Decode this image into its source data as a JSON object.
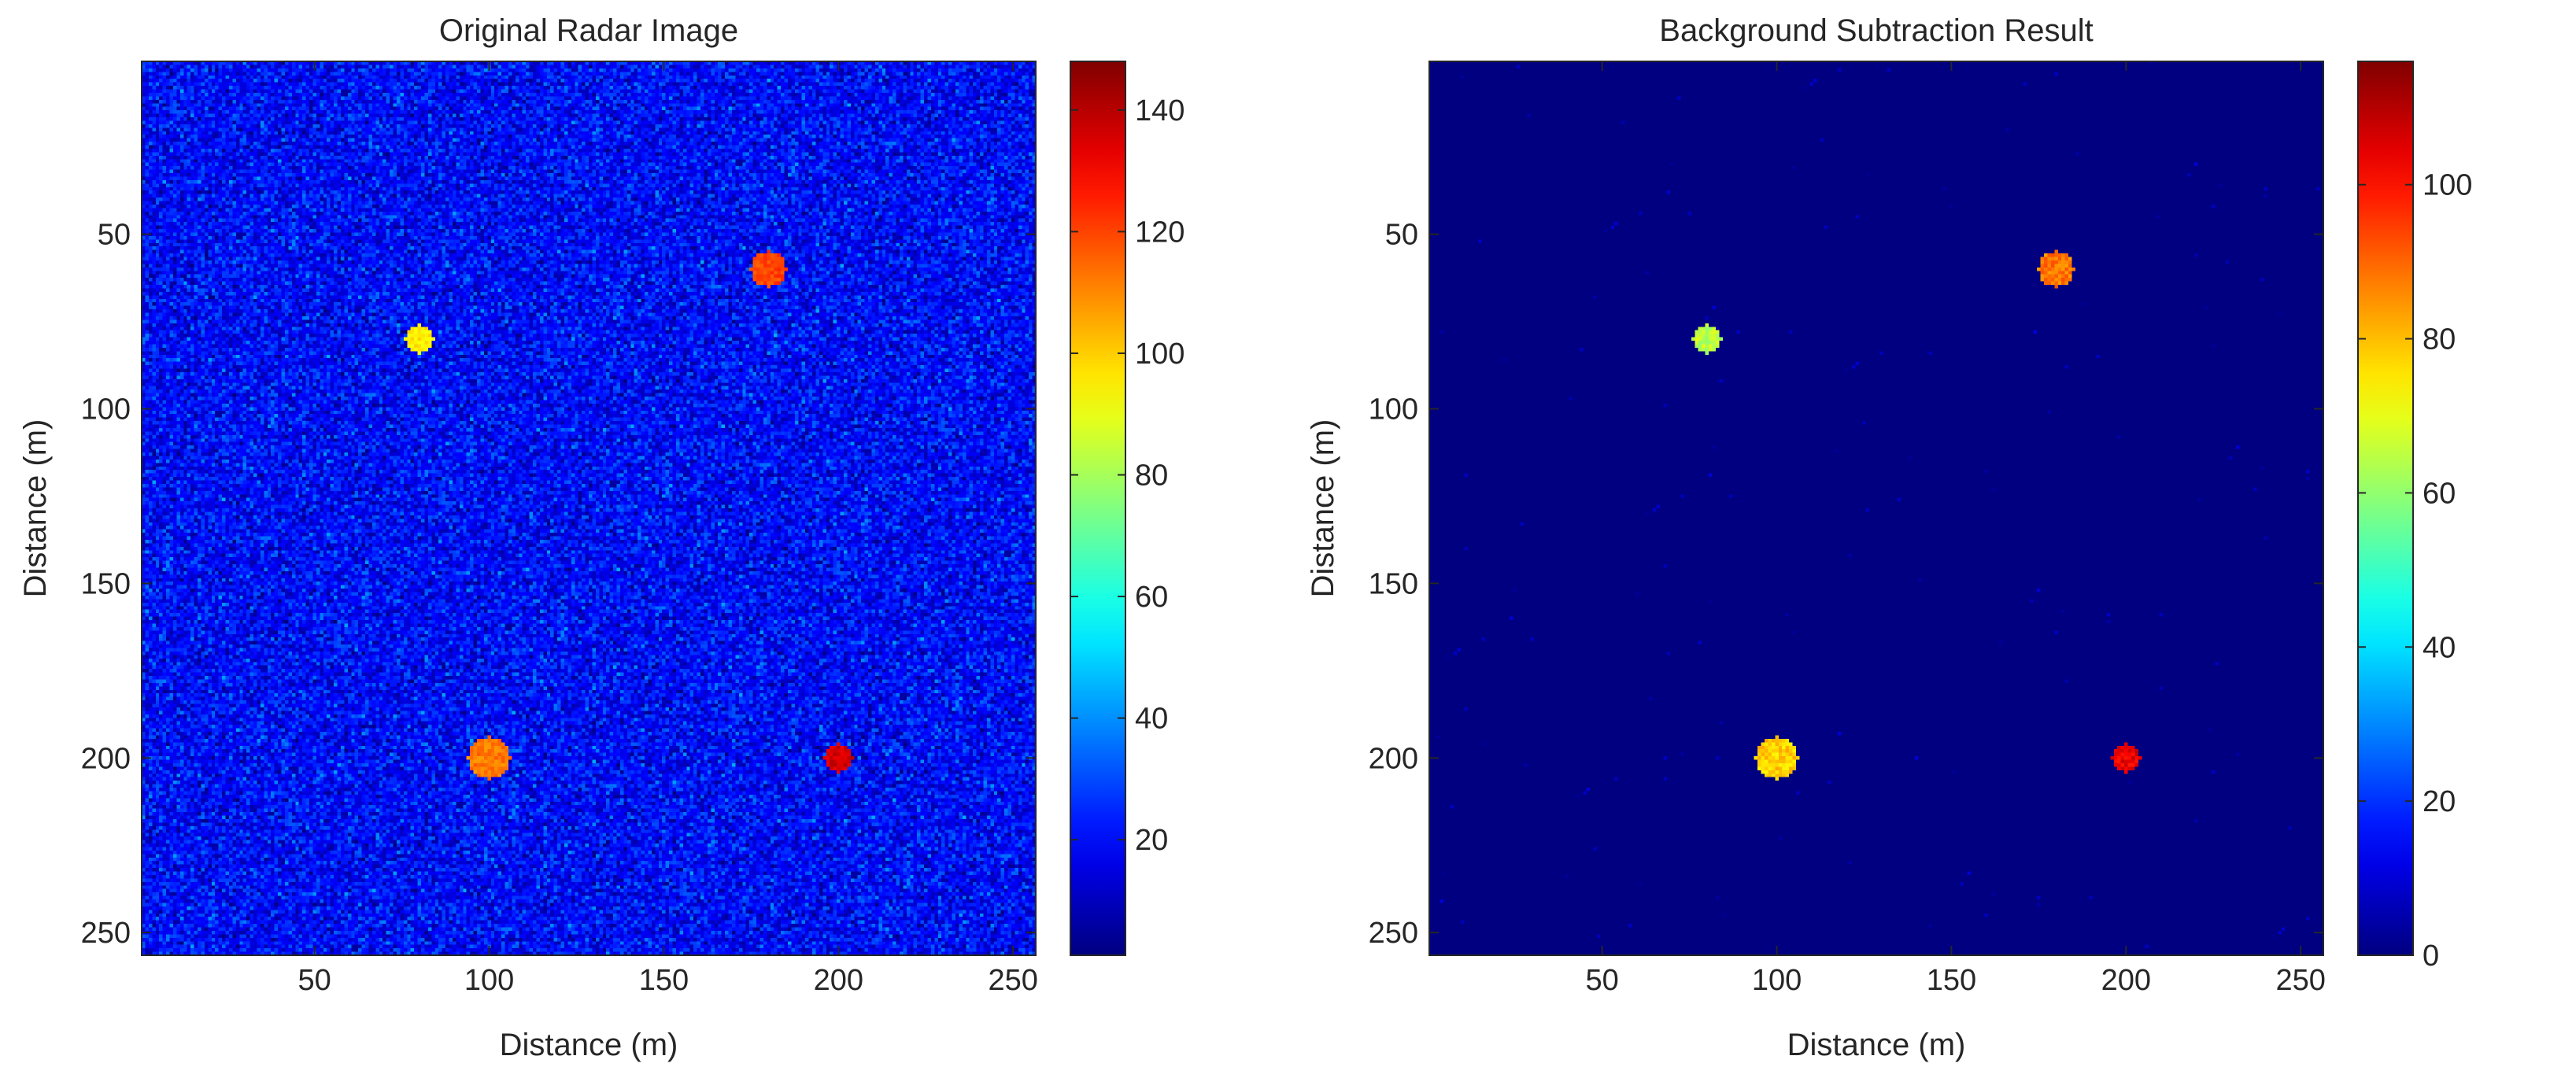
{
  "chart_data": [
    {
      "type": "heatmap",
      "title": "Original Radar Image",
      "xlabel": "Distance (m)",
      "ylabel": "Distance (m)",
      "xlim": [
        1,
        256
      ],
      "ylim": [
        1,
        256
      ],
      "y_direction": "reversed",
      "x_ticks": [
        "50",
        "100",
        "150",
        "200",
        "250"
      ],
      "y_ticks": [
        "50",
        "100",
        "150",
        "200",
        "250"
      ],
      "colormap": "jet",
      "colorbar": {
        "min": 1,
        "max": 148,
        "ticks": [
          "20",
          "40",
          "60",
          "80",
          "100",
          "120",
          "140"
        ]
      },
      "background": {
        "mean": 20,
        "noise": 8
      },
      "targets": [
        {
          "x": 180,
          "y": 60,
          "radius": 5,
          "value": 120
        },
        {
          "x": 80,
          "y": 80,
          "radius": 4,
          "value": 95
        },
        {
          "x": 100,
          "y": 200,
          "radius": 6,
          "value": 112
        },
        {
          "x": 200,
          "y": 200,
          "radius": 4,
          "value": 136
        }
      ]
    },
    {
      "type": "heatmap",
      "title": "Background Subtraction Result",
      "xlabel": "Distance (m)",
      "ylabel": "Distance (m)",
      "xlim": [
        1,
        256
      ],
      "ylim": [
        1,
        256
      ],
      "y_direction": "reversed",
      "x_ticks": [
        "50",
        "100",
        "150",
        "200",
        "250"
      ],
      "y_ticks": [
        "50",
        "100",
        "150",
        "200",
        "250"
      ],
      "colormap": "jet",
      "colorbar": {
        "min": 0,
        "max": 116,
        "ticks": [
          "0",
          "20",
          "40",
          "60",
          "80",
          "100"
        ]
      },
      "background": {
        "mean": 0,
        "noise": 0
      },
      "targets": [
        {
          "x": 180,
          "y": 60,
          "radius": 5,
          "value": 88
        },
        {
          "x": 80,
          "y": 80,
          "radius": 4,
          "value": 65
        },
        {
          "x": 100,
          "y": 200,
          "radius": 6,
          "value": 78
        },
        {
          "x": 200,
          "y": 200,
          "radius": 4,
          "value": 104
        }
      ]
    }
  ]
}
